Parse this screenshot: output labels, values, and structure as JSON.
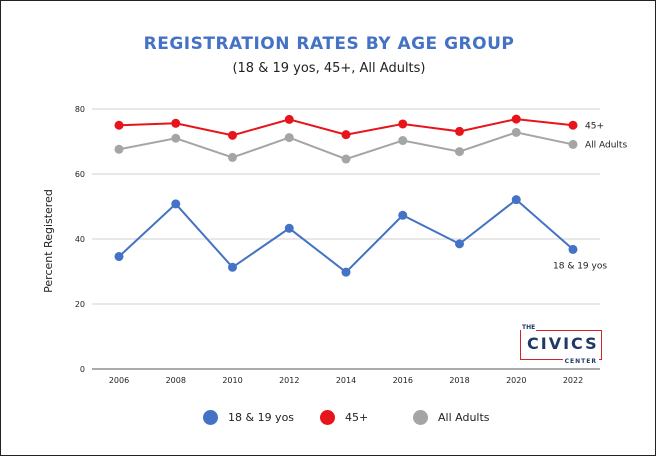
{
  "chart_data": {
    "type": "line",
    "title": "REGISTRATION RATES BY AGE GROUP",
    "subtitle": "(18 & 19 yos, 45+, All Adults)",
    "xlabel": "",
    "ylabel": "Percent Registered",
    "x": [
      "2006",
      "2008",
      "2010",
      "2012",
      "2014",
      "2016",
      "2018",
      "2020",
      "2022"
    ],
    "ylim": [
      0,
      80
    ],
    "yticks": [
      0,
      20,
      40,
      60,
      80
    ],
    "grid": true,
    "legend_position": "bottom",
    "series": [
      {
        "name": "18 & 19 yos",
        "color": "#4472c4",
        "values": [
          34.6,
          50.8,
          31.3,
          43.3,
          29.8,
          47.3,
          38.5,
          52.1,
          36.8
        ],
        "end_label": "18 & 19 yos"
      },
      {
        "name": "45+",
        "color": "#e8141b",
        "values": [
          75.0,
          75.6,
          71.9,
          76.8,
          72.1,
          75.4,
          73.1,
          76.9,
          75.0
        ],
        "end_label": "45+"
      },
      {
        "name": "All Adults",
        "color": "#a5a5a5",
        "values": [
          67.6,
          71.0,
          65.1,
          71.2,
          64.6,
          70.3,
          66.9,
          72.8,
          69.1
        ],
        "end_label": "All Adults"
      }
    ]
  },
  "logo": {
    "top": "THE",
    "main": "CIVICS",
    "bottom": "CENTER"
  }
}
